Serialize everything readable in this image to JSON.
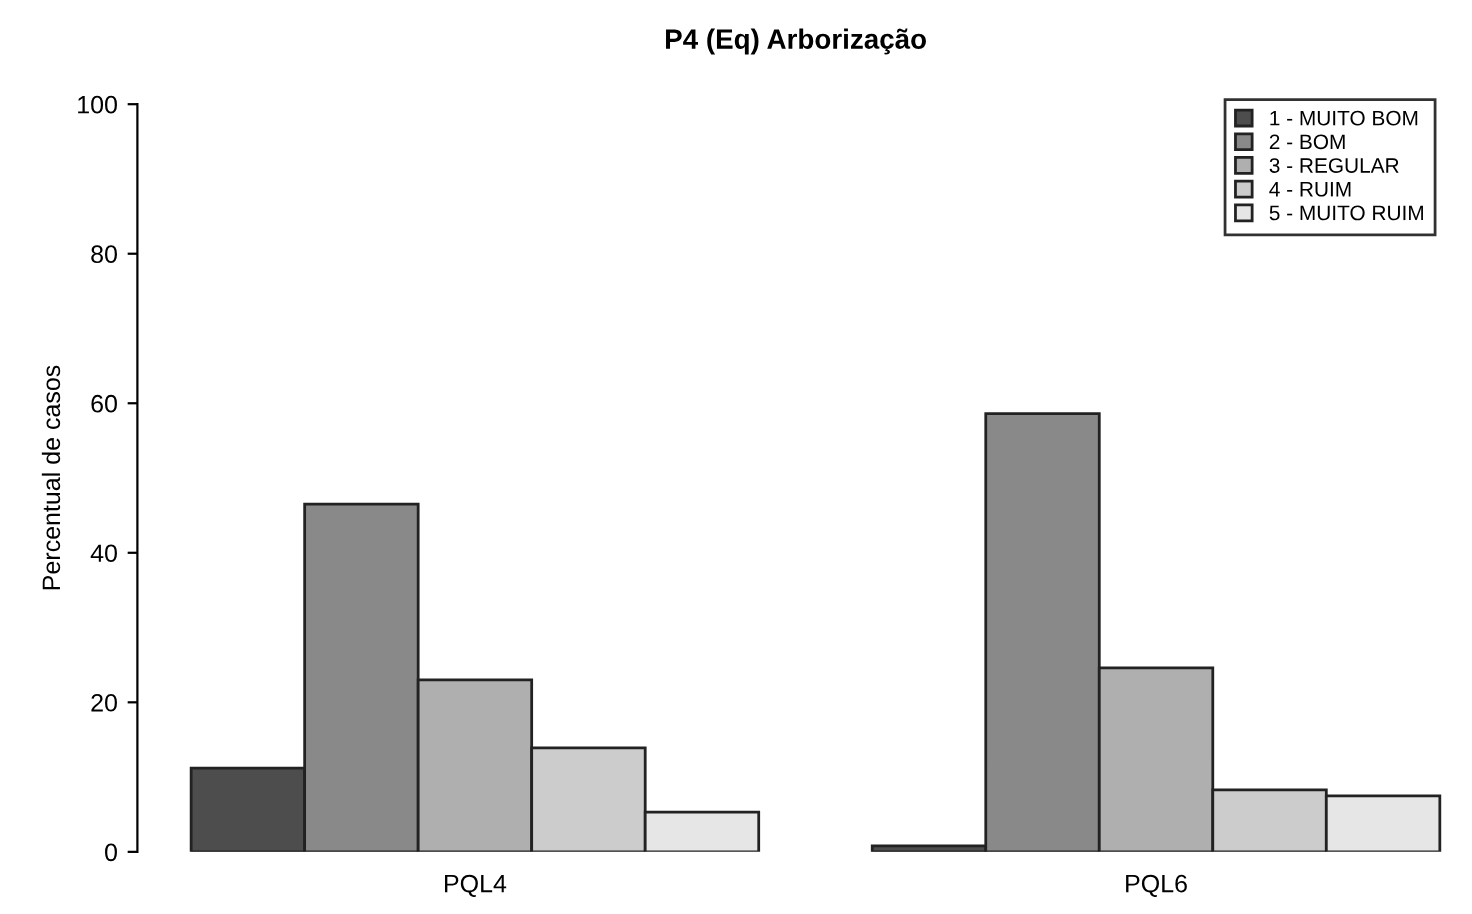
{
  "chart_data": {
    "type": "bar",
    "title": "P4 (Eq) Arborização",
    "ylabel": "Percentual de casos",
    "categories": [
      "PQL4",
      "PQL6"
    ],
    "series": [
      {
        "name": "1 - MUITO BOM",
        "color": "#4d4d4d",
        "values": [
          11.2,
          0.8
        ]
      },
      {
        "name": "2 - BOM",
        "color": "#898989",
        "values": [
          46.5,
          58.6
        ]
      },
      {
        "name": "3 - REGULAR",
        "color": "#afafaf",
        "values": [
          23.0,
          24.6
        ]
      },
      {
        "name": "4 - RUIM",
        "color": "#cccccc",
        "values": [
          13.9,
          8.3
        ]
      },
      {
        "name": "5 - MUITO RUIM",
        "color": "#e6e6e6",
        "values": [
          5.3,
          7.5
        ]
      }
    ],
    "ylim": [
      0,
      100
    ],
    "yticks": [
      0,
      20,
      40,
      60,
      80,
      100
    ],
    "grid": false,
    "legend": "top right"
  }
}
